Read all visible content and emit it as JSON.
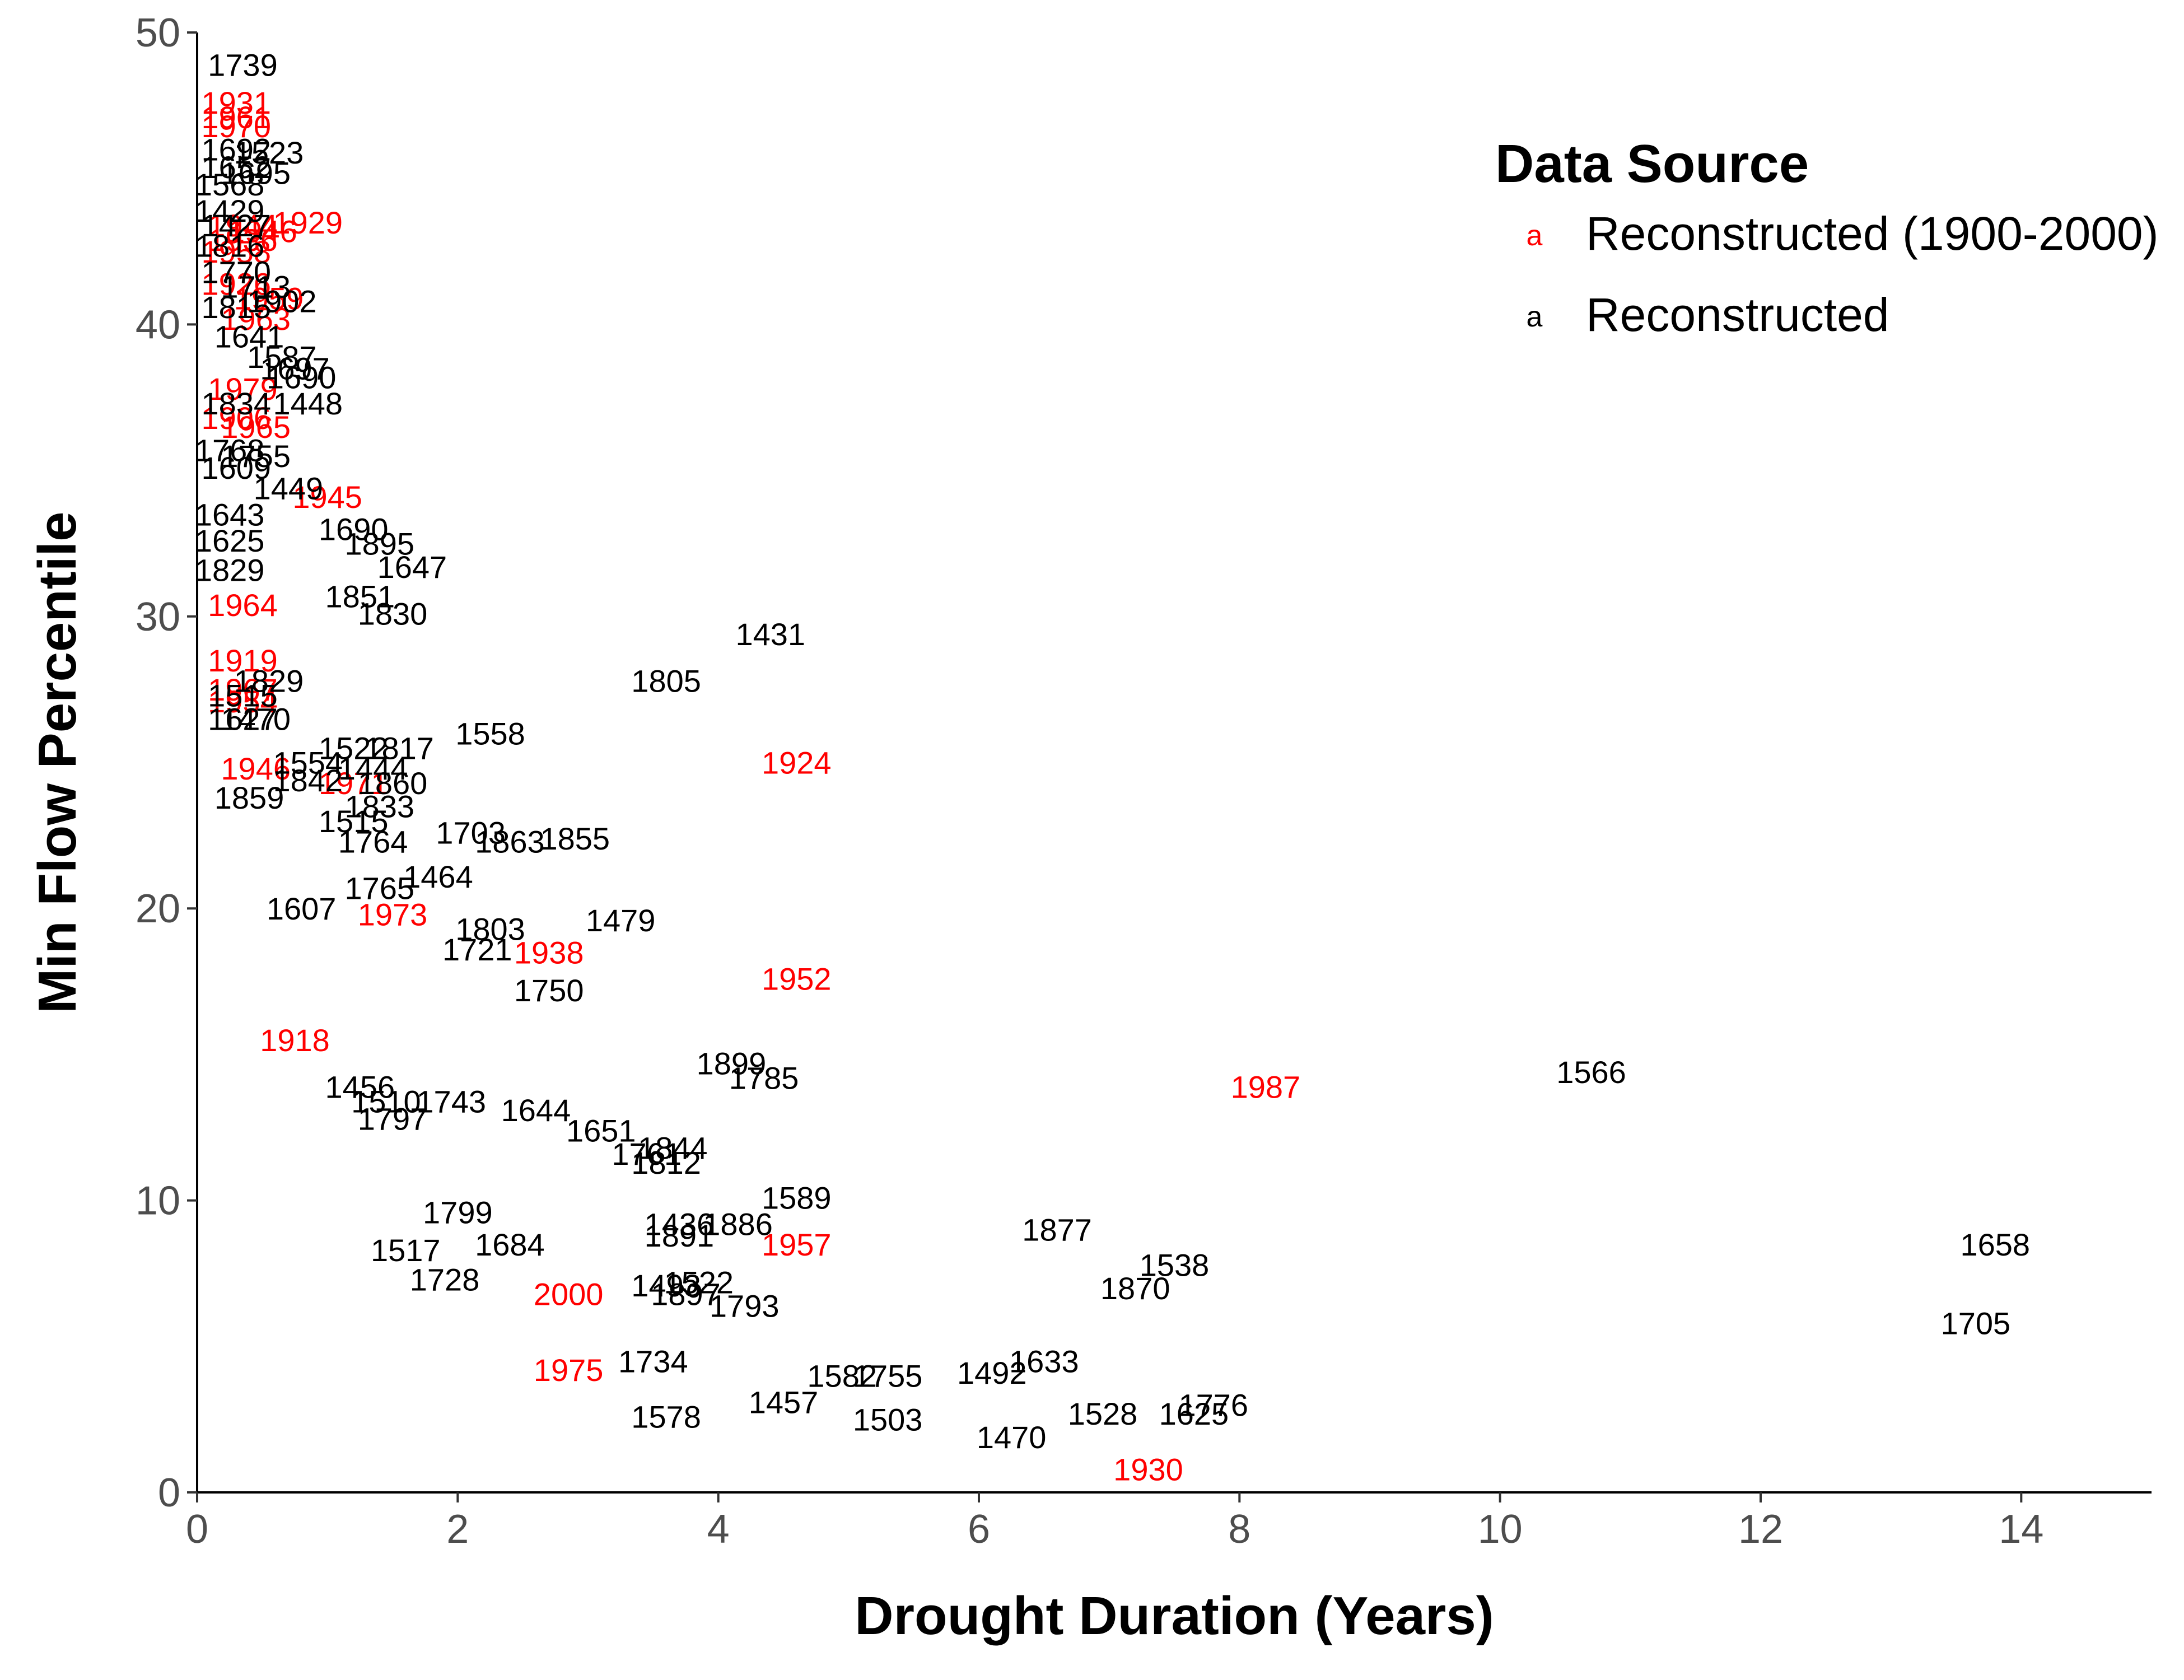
{
  "chart_data": {
    "type": "scatter",
    "xlabel": "Drought Duration (Years)",
    "ylabel": "Min Flow Percentile",
    "xlim": [
      0,
      15
    ],
    "ylim": [
      0,
      50
    ],
    "x_ticks": [
      0,
      2,
      4,
      6,
      8,
      10,
      12,
      14
    ],
    "y_ticks": [
      0,
      10,
      20,
      30,
      40,
      50
    ],
    "grid": false,
    "legend": {
      "title": "Data Source",
      "position": "top-right",
      "key_glyph": "a",
      "entries": [
        {
          "label": "Reconstructed (1900-2000)",
          "color": "#ff0000"
        },
        {
          "label": "Reconstructed",
          "color": "#000000"
        }
      ]
    },
    "series": [
      {
        "name": "Reconstructed (1900-2000)",
        "color": "#ff0000",
        "points": [
          {
            "year": "1931",
            "x": 0.3,
            "y": 47.6
          },
          {
            "year": "1961",
            "x": 0.3,
            "y": 47.1
          },
          {
            "year": "1970",
            "x": 0.3,
            "y": 46.8
          },
          {
            "year": "1929",
            "x": 0.85,
            "y": 43.5
          },
          {
            "year": "1944",
            "x": 0.35,
            "y": 43.4
          },
          {
            "year": "1946",
            "x": 0.5,
            "y": 43.2
          },
          {
            "year": "1936",
            "x": 0.35,
            "y": 42.9
          },
          {
            "year": "1958",
            "x": 0.3,
            "y": 42.5
          },
          {
            "year": "1926",
            "x": 0.3,
            "y": 41.4
          },
          {
            "year": "1959",
            "x": 0.55,
            "y": 40.9
          },
          {
            "year": "1963",
            "x": 0.45,
            "y": 40.2
          },
          {
            "year": "1979",
            "x": 0.35,
            "y": 37.8
          },
          {
            "year": "1906",
            "x": 0.3,
            "y": 36.8
          },
          {
            "year": "1965",
            "x": 0.45,
            "y": 36.5
          },
          {
            "year": "1945",
            "x": 1.0,
            "y": 34.1
          },
          {
            "year": "1964",
            "x": 0.35,
            "y": 30.4
          },
          {
            "year": "1919",
            "x": 0.35,
            "y": 28.5
          },
          {
            "year": "1967",
            "x": 0.35,
            "y": 27.5
          },
          {
            "year": "1954",
            "x": 0.35,
            "y": 27.1
          },
          {
            "year": "1946",
            "x": 0.45,
            "y": 24.8
          },
          {
            "year": "1971",
            "x": 1.2,
            "y": 24.3
          },
          {
            "year": "1973",
            "x": 1.5,
            "y": 19.8
          },
          {
            "year": "1938",
            "x": 2.7,
            "y": 18.5
          },
          {
            "year": "1924",
            "x": 4.6,
            "y": 25.0
          },
          {
            "year": "1952",
            "x": 4.6,
            "y": 17.6
          },
          {
            "year": "1918",
            "x": 0.75,
            "y": 15.5
          },
          {
            "year": "1987",
            "x": 8.2,
            "y": 13.9
          },
          {
            "year": "1957",
            "x": 4.6,
            "y": 8.5
          },
          {
            "year": "2000",
            "x": 2.85,
            "y": 6.8
          },
          {
            "year": "1975",
            "x": 2.85,
            "y": 4.2
          },
          {
            "year": "1930",
            "x": 7.3,
            "y": 0.8
          }
        ]
      },
      {
        "name": "Reconstructed",
        "color": "#000000",
        "points": [
          {
            "year": "1739",
            "x": 0.35,
            "y": 48.9
          },
          {
            "year": "1692",
            "x": 0.3,
            "y": 46.0
          },
          {
            "year": "1523",
            "x": 0.55,
            "y": 45.9
          },
          {
            "year": "1652",
            "x": 0.3,
            "y": 45.4
          },
          {
            "year": "1695",
            "x": 0.45,
            "y": 45.2
          },
          {
            "year": "1568",
            "x": 0.25,
            "y": 44.8
          },
          {
            "year": "1429",
            "x": 0.25,
            "y": 43.9
          },
          {
            "year": "1427",
            "x": 0.3,
            "y": 43.4
          },
          {
            "year": "1816",
            "x": 0.25,
            "y": 42.7
          },
          {
            "year": "1770",
            "x": 0.3,
            "y": 41.8
          },
          {
            "year": "1713",
            "x": 0.45,
            "y": 41.3
          },
          {
            "year": "1815",
            "x": 0.3,
            "y": 40.6
          },
          {
            "year": "1902",
            "x": 0.65,
            "y": 40.8
          },
          {
            "year": "1641",
            "x": 0.4,
            "y": 39.6
          },
          {
            "year": "1587",
            "x": 0.65,
            "y": 38.9
          },
          {
            "year": "1697",
            "x": 0.75,
            "y": 38.5
          },
          {
            "year": "1690",
            "x": 0.8,
            "y": 38.2
          },
          {
            "year": "1834",
            "x": 0.3,
            "y": 37.3
          },
          {
            "year": "1448",
            "x": 0.85,
            "y": 37.3
          },
          {
            "year": "1768",
            "x": 0.25,
            "y": 35.7
          },
          {
            "year": "1755",
            "x": 0.45,
            "y": 35.5
          },
          {
            "year": "1609",
            "x": 0.3,
            "y": 35.1
          },
          {
            "year": "1449",
            "x": 0.7,
            "y": 34.4
          },
          {
            "year": "1643",
            "x": 0.25,
            "y": 33.5
          },
          {
            "year": "1625",
            "x": 0.25,
            "y": 32.6
          },
          {
            "year": "1690",
            "x": 1.2,
            "y": 33.0
          },
          {
            "year": "1895",
            "x": 1.4,
            "y": 32.5
          },
          {
            "year": "1647",
            "x": 1.65,
            "y": 31.7
          },
          {
            "year": "1829",
            "x": 0.25,
            "y": 31.6
          },
          {
            "year": "1851",
            "x": 1.25,
            "y": 30.7
          },
          {
            "year": "1830",
            "x": 1.5,
            "y": 30.1
          },
          {
            "year": "1431",
            "x": 4.4,
            "y": 29.4
          },
          {
            "year": "1805",
            "x": 3.6,
            "y": 27.8
          },
          {
            "year": "1829",
            "x": 0.55,
            "y": 27.8
          },
          {
            "year": "1515",
            "x": 0.35,
            "y": 27.3
          },
          {
            "year": "1627",
            "x": 0.35,
            "y": 26.5
          },
          {
            "year": "1470",
            "x": 0.45,
            "y": 26.5
          },
          {
            "year": "1558",
            "x": 2.25,
            "y": 26.0
          },
          {
            "year": "1522",
            "x": 1.2,
            "y": 25.5
          },
          {
            "year": "1817",
            "x": 1.55,
            "y": 25.5
          },
          {
            "year": "1554",
            "x": 0.85,
            "y": 25.0
          },
          {
            "year": "1444",
            "x": 1.35,
            "y": 24.8
          },
          {
            "year": "1842",
            "x": 0.85,
            "y": 24.4
          },
          {
            "year": "1860",
            "x": 1.5,
            "y": 24.3
          },
          {
            "year": "1859",
            "x": 0.4,
            "y": 23.8
          },
          {
            "year": "1833",
            "x": 1.4,
            "y": 23.5
          },
          {
            "year": "1515",
            "x": 1.2,
            "y": 23.0
          },
          {
            "year": "1703",
            "x": 2.1,
            "y": 22.6
          },
          {
            "year": "1863",
            "x": 2.4,
            "y": 22.3
          },
          {
            "year": "1855",
            "x": 2.9,
            "y": 22.4
          },
          {
            "year": "1764",
            "x": 1.35,
            "y": 22.3
          },
          {
            "year": "1464",
            "x": 1.85,
            "y": 21.1
          },
          {
            "year": "1765",
            "x": 1.4,
            "y": 20.7
          },
          {
            "year": "1607",
            "x": 0.8,
            "y": 20.0
          },
          {
            "year": "1479",
            "x": 3.25,
            "y": 19.6
          },
          {
            "year": "1803",
            "x": 2.25,
            "y": 19.3
          },
          {
            "year": "1721",
            "x": 2.15,
            "y": 18.6
          },
          {
            "year": "1750",
            "x": 2.7,
            "y": 17.2
          },
          {
            "year": "1899",
            "x": 4.1,
            "y": 14.7
          },
          {
            "year": "1785",
            "x": 4.35,
            "y": 14.2
          },
          {
            "year": "1566",
            "x": 10.7,
            "y": 14.4
          },
          {
            "year": "1456",
            "x": 1.25,
            "y": 13.9
          },
          {
            "year": "1510",
            "x": 1.45,
            "y": 13.4
          },
          {
            "year": "1743",
            "x": 1.95,
            "y": 13.4
          },
          {
            "year": "1644",
            "x": 2.6,
            "y": 13.1
          },
          {
            "year": "1797",
            "x": 1.5,
            "y": 12.8
          },
          {
            "year": "1651",
            "x": 3.1,
            "y": 12.4
          },
          {
            "year": "1761",
            "x": 3.45,
            "y": 11.6
          },
          {
            "year": "1844",
            "x": 3.65,
            "y": 11.8
          },
          {
            "year": "1812",
            "x": 3.6,
            "y": 11.3
          },
          {
            "year": "1589",
            "x": 4.6,
            "y": 10.1
          },
          {
            "year": "1799",
            "x": 2.0,
            "y": 9.6
          },
          {
            "year": "1436",
            "x": 3.7,
            "y": 9.2
          },
          {
            "year": "1886",
            "x": 4.15,
            "y": 9.2
          },
          {
            "year": "1891",
            "x": 3.7,
            "y": 8.8
          },
          {
            "year": "1877",
            "x": 6.6,
            "y": 9.0
          },
          {
            "year": "1684",
            "x": 2.4,
            "y": 8.5
          },
          {
            "year": "1517",
            "x": 1.6,
            "y": 8.3
          },
          {
            "year": "1658",
            "x": 13.8,
            "y": 8.5
          },
          {
            "year": "1538",
            "x": 7.5,
            "y": 7.8
          },
          {
            "year": "1728",
            "x": 1.9,
            "y": 7.3
          },
          {
            "year": "1870",
            "x": 7.2,
            "y": 7.0
          },
          {
            "year": "1493",
            "x": 3.6,
            "y": 7.1
          },
          {
            "year": "1522",
            "x": 3.85,
            "y": 7.2
          },
          {
            "year": "1897",
            "x": 3.75,
            "y": 6.8
          },
          {
            "year": "1793",
            "x": 4.2,
            "y": 6.4
          },
          {
            "year": "1705",
            "x": 13.65,
            "y": 5.8
          },
          {
            "year": "1734",
            "x": 3.5,
            "y": 4.5
          },
          {
            "year": "1633",
            "x": 6.5,
            "y": 4.5
          },
          {
            "year": "1492",
            "x": 6.1,
            "y": 4.1
          },
          {
            "year": "1582",
            "x": 4.95,
            "y": 4.0
          },
          {
            "year": "1755",
            "x": 5.3,
            "y": 4.0
          },
          {
            "year": "1776",
            "x": 7.8,
            "y": 3.0
          },
          {
            "year": "1625",
            "x": 7.65,
            "y": 2.7
          },
          {
            "year": "1528",
            "x": 6.95,
            "y": 2.7
          },
          {
            "year": "1457",
            "x": 4.5,
            "y": 3.1
          },
          {
            "year": "1578",
            "x": 3.6,
            "y": 2.6
          },
          {
            "year": "1503",
            "x": 5.3,
            "y": 2.5
          },
          {
            "year": "1470",
            "x": 6.25,
            "y": 1.9
          }
        ]
      }
    ]
  }
}
